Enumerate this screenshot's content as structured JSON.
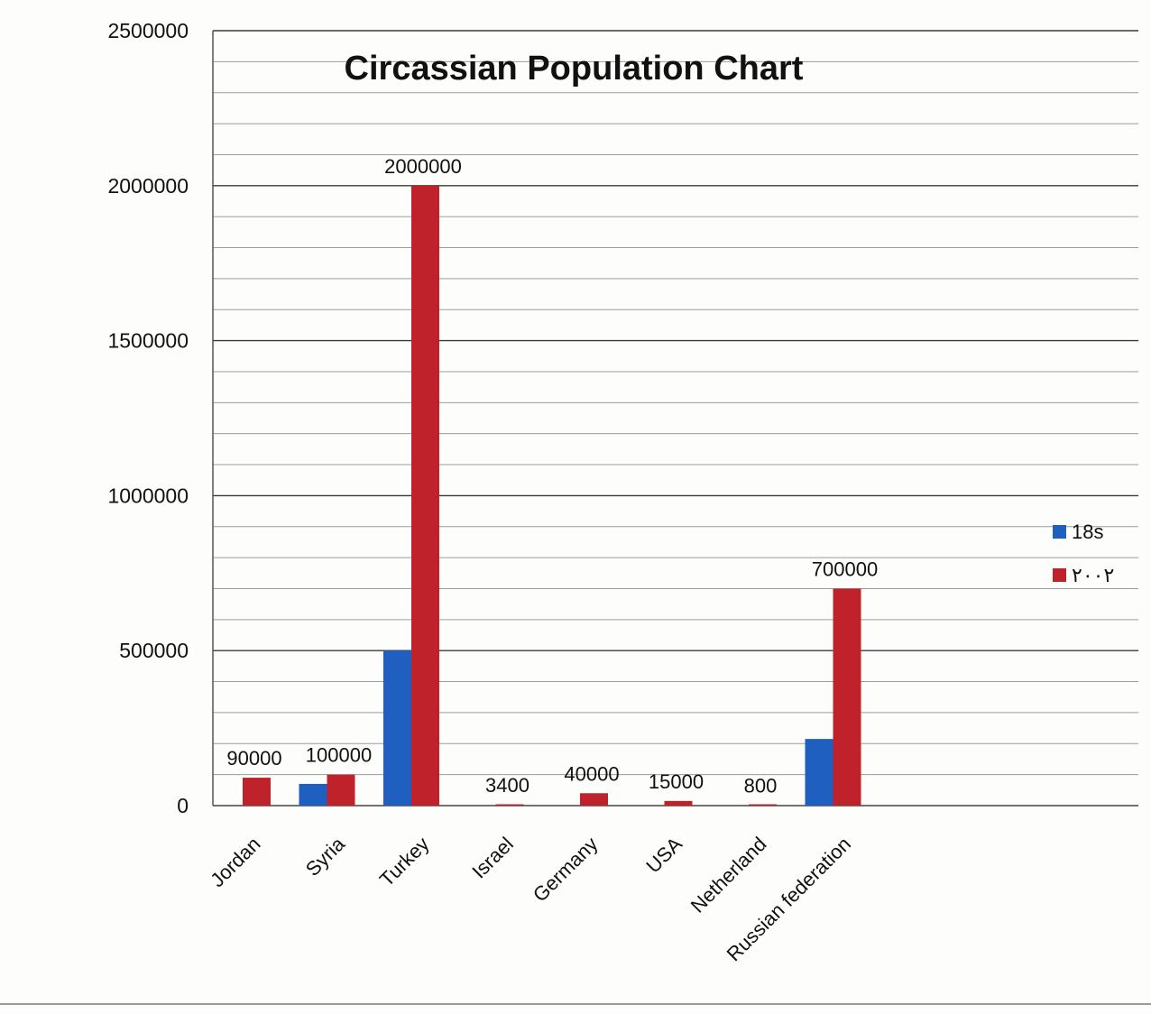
{
  "chart_data": {
    "type": "bar",
    "title": "Circassian Population Chart",
    "xlabel": "",
    "ylabel": "",
    "categories": [
      "Jordan",
      "Syria",
      "Turkey",
      "Israel",
      "Germany",
      "USA",
      "Netherland",
      "Russian federation"
    ],
    "series": [
      {
        "name": "18s",
        "color": "#1f5fbf",
        "values": [
          0,
          70000,
          500000,
          0,
          0,
          0,
          0,
          215000
        ]
      },
      {
        "name": "٢٠٠٢",
        "color": "#c0222b",
        "values": [
          90000,
          100000,
          2000000,
          3400,
          40000,
          15000,
          800,
          700000
        ]
      }
    ],
    "data_labels": [
      "90000",
      "100000",
      "2000000",
      "3400",
      "40000",
      "15000",
      "800",
      "700000"
    ],
    "ylim": [
      0,
      2500000
    ],
    "yticks": [
      0,
      500000,
      1000000,
      1500000,
      2000000,
      2500000
    ],
    "ytick_labels": [
      "0",
      "500000",
      "1000000",
      "1500000",
      "2000000",
      "2500000"
    ],
    "legend_position": "right",
    "grid": true
  }
}
